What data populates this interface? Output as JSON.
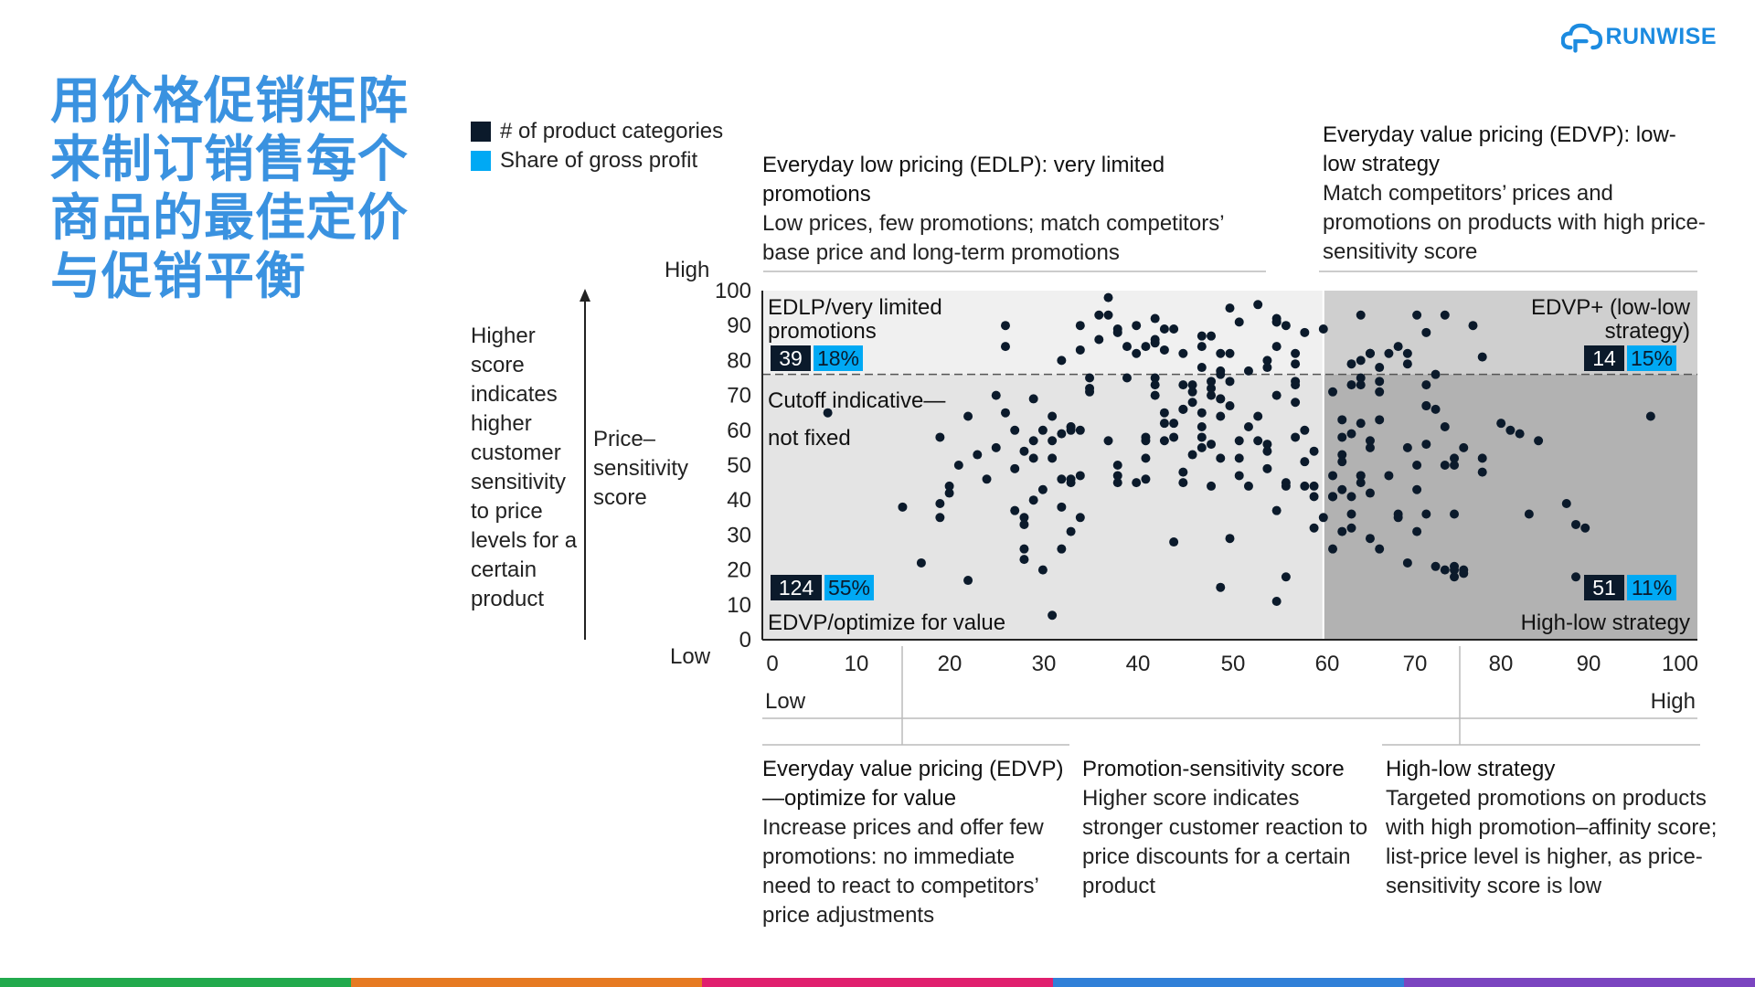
{
  "title": "用价格促销矩阵来制订销售每个商品的最佳定价与促销平衡",
  "logo": {
    "text": "RUNWISE"
  },
  "legend": [
    {
      "label": "# of product categories",
      "color": "#0b1a2b"
    },
    {
      "label": "Share of gross profit",
      "color": "#00a9f4"
    }
  ],
  "top_annotations": {
    "edlp_title": "Everyday low pricing (EDLP): very limited promotions",
    "edlp_body": "Low prices, few promotions; match competitors’ base price and long-term promotions",
    "edvp_title": "Everyday value pricing (EDVP): low-low strategy",
    "edvp_body": "Match competitors’ prices and promotions on products with high price-sensitivity score"
  },
  "y_axis": {
    "high": "High",
    "low": "Low",
    "label": "Price– sensitivity score",
    "description": "Higher score indicates higher customer sensitivity to price levels for a certain product"
  },
  "bottom_annotations": {
    "edvp_title": "Everyday value pricing (EDVP)—optimize for value",
    "edvp_body": "Increase prices and offer few promotions: no immediate need to react to competitors’ price adjustments",
    "promo_title": "Promotion-sensitivity score",
    "promo_body": "Higher score indicates stronger customer reaction to price discounts for a certain product",
    "highlow_title": "High-low strategy",
    "highlow_body": "Targeted promotions on products with high promotion–affinity score; list-price level is higher, as price-sensitivity score is low"
  },
  "chart_data": {
    "type": "scatter",
    "title": "",
    "xlabel": "Promotion-sensitivity score",
    "ylabel": "Price-sensitivity score",
    "xlim": [
      0,
      100
    ],
    "ylim": [
      0,
      100
    ],
    "x_ticks": [
      0,
      10,
      20,
      30,
      40,
      50,
      60,
      70,
      80,
      90,
      100
    ],
    "y_ticks": [
      100,
      90,
      80,
      70,
      60,
      50,
      40,
      30,
      20,
      10,
      0
    ],
    "x_low": "Low",
    "x_high": "High",
    "cutoff": {
      "y": 76,
      "label_line1": "Cutoff indicative—",
      "label_line2": "not fixed"
    },
    "x_split": 60,
    "quadrants": [
      {
        "name": "EDLP/very limited promotions",
        "line1": "EDLP/very limited",
        "line2": "promotions",
        "count": "39",
        "share": "18%",
        "fill": "#f0f0f0"
      },
      {
        "name": "EDVP+ (low-low strategy)",
        "line1": "EDVP+ (low-low",
        "line2": "strategy)",
        "count": "14",
        "share": "15%",
        "fill": "#cfcfcf"
      },
      {
        "name": "EDVP/optimize for value",
        "line1": "EDVP/optimize for value",
        "count": "124",
        "share": "55%",
        "fill": "#e4e4e4"
      },
      {
        "name": "High-low strategy",
        "line1": "High-low strategy",
        "count": "51",
        "share": "11%",
        "fill": "#b2b2b2"
      }
    ],
    "points": [
      [
        7,
        65
      ],
      [
        15,
        38
      ],
      [
        17,
        22
      ],
      [
        19,
        39
      ],
      [
        20,
        42
      ],
      [
        20,
        44
      ],
      [
        21,
        50
      ],
      [
        22,
        17
      ],
      [
        19,
        58
      ],
      [
        19,
        35
      ],
      [
        22,
        64
      ],
      [
        23,
        53
      ],
      [
        24,
        46
      ],
      [
        25,
        55
      ],
      [
        26,
        90
      ],
      [
        26,
        84
      ],
      [
        25,
        70
      ],
      [
        26,
        65
      ],
      [
        27,
        49
      ],
      [
        27,
        37
      ],
      [
        27,
        60
      ],
      [
        28,
        54
      ],
      [
        28,
        35
      ],
      [
        28,
        26
      ],
      [
        28,
        23
      ],
      [
        28,
        33
      ],
      [
        29,
        40
      ],
      [
        29,
        57
      ],
      [
        29,
        69
      ],
      [
        29,
        52
      ],
      [
        30,
        60
      ],
      [
        30,
        20
      ],
      [
        30,
        43
      ],
      [
        31,
        57
      ],
      [
        31,
        52
      ],
      [
        31,
        64
      ],
      [
        31,
        7
      ],
      [
        32,
        59
      ],
      [
        32,
        46
      ],
      [
        32,
        38
      ],
      [
        32,
        26
      ],
      [
        32,
        80
      ],
      [
        33,
        61
      ],
      [
        33,
        61
      ],
      [
        33,
        45
      ],
      [
        33,
        60
      ],
      [
        33,
        46
      ],
      [
        33,
        31
      ],
      [
        34,
        47
      ],
      [
        34,
        35
      ],
      [
        34,
        60
      ],
      [
        34,
        83
      ],
      [
        34,
        90
      ],
      [
        35,
        75
      ],
      [
        35,
        71
      ],
      [
        35,
        72
      ],
      [
        36,
        93
      ],
      [
        36,
        86
      ],
      [
        37,
        98
      ],
      [
        37,
        93
      ],
      [
        37,
        57
      ],
      [
        38,
        89
      ],
      [
        38,
        88
      ],
      [
        38,
        50
      ],
      [
        38,
        45
      ],
      [
        38,
        47
      ],
      [
        39,
        75
      ],
      [
        40,
        90
      ],
      [
        39,
        84
      ],
      [
        40,
        82
      ],
      [
        40,
        45
      ],
      [
        41,
        52
      ],
      [
        41,
        57
      ],
      [
        41,
        84
      ],
      [
        41,
        58
      ],
      [
        41,
        46
      ],
      [
        42,
        70
      ],
      [
        42,
        75
      ],
      [
        42,
        85
      ],
      [
        42,
        92
      ],
      [
        42,
        86
      ],
      [
        42,
        73
      ],
      [
        43,
        89
      ],
      [
        43,
        65
      ],
      [
        43,
        83
      ],
      [
        43,
        57
      ],
      [
        43,
        62
      ],
      [
        44,
        62
      ],
      [
        44,
        58
      ],
      [
        44,
        28
      ],
      [
        44,
        89
      ],
      [
        45,
        82
      ],
      [
        45,
        66
      ],
      [
        45,
        73
      ],
      [
        45,
        66
      ],
      [
        45,
        45
      ],
      [
        45,
        48
      ],
      [
        46,
        71
      ],
      [
        46,
        68
      ],
      [
        46,
        53
      ],
      [
        46,
        73
      ],
      [
        47,
        84
      ],
      [
        47,
        58
      ],
      [
        47,
        65
      ],
      [
        47,
        78
      ],
      [
        47,
        61
      ],
      [
        47,
        55
      ],
      [
        47,
        87
      ],
      [
        48,
        87
      ],
      [
        48,
        44
      ],
      [
        48,
        56
      ],
      [
        48,
        70
      ],
      [
        48,
        72
      ],
      [
        49,
        69
      ],
      [
        49,
        77
      ],
      [
        48,
        74
      ],
      [
        49,
        76
      ],
      [
        49,
        69
      ],
      [
        49,
        64
      ],
      [
        49,
        82
      ],
      [
        50,
        74
      ],
      [
        50,
        82
      ],
      [
        49,
        52
      ],
      [
        50,
        95
      ],
      [
        50,
        67
      ],
      [
        49,
        15
      ],
      [
        50,
        29
      ],
      [
        51,
        47
      ],
      [
        51,
        52
      ],
      [
        51,
        57
      ],
      [
        51,
        91
      ],
      [
        52,
        44
      ],
      [
        52,
        61
      ],
      [
        52,
        77
      ],
      [
        53,
        96
      ],
      [
        53,
        57
      ],
      [
        53,
        64
      ],
      [
        54,
        49
      ],
      [
        54,
        56
      ],
      [
        54,
        80
      ],
      [
        54,
        78
      ],
      [
        54,
        54
      ],
      [
        55,
        92
      ],
      [
        55,
        91
      ],
      [
        55,
        70
      ],
      [
        55,
        84
      ],
      [
        55,
        91
      ],
      [
        55,
        37
      ],
      [
        55,
        11
      ],
      [
        56,
        90
      ],
      [
        56,
        18
      ],
      [
        56,
        44
      ],
      [
        56,
        45
      ],
      [
        57,
        73
      ],
      [
        57,
        82
      ],
      [
        57,
        58
      ],
      [
        57,
        74
      ],
      [
        57,
        68
      ],
      [
        57,
        79
      ],
      [
        58,
        88
      ],
      [
        58,
        60
      ],
      [
        58,
        51
      ],
      [
        58,
        44
      ],
      [
        59,
        44
      ],
      [
        59,
        54
      ],
      [
        59,
        41
      ],
      [
        59,
        32
      ],
      [
        60,
        35
      ],
      [
        60,
        89
      ],
      [
        61,
        41
      ],
      [
        61,
        47
      ],
      [
        61,
        71
      ],
      [
        61,
        41
      ],
      [
        61,
        41
      ],
      [
        61,
        26
      ],
      [
        62,
        31
      ],
      [
        62,
        53
      ],
      [
        62,
        63
      ],
      [
        62,
        58
      ],
      [
        62,
        51
      ],
      [
        62,
        43
      ],
      [
        63,
        41
      ],
      [
        63,
        79
      ],
      [
        63,
        59
      ],
      [
        63,
        36
      ],
      [
        63,
        73
      ],
      [
        63,
        32
      ],
      [
        64,
        75
      ],
      [
        64,
        80
      ],
      [
        64,
        47
      ],
      [
        64,
        45
      ],
      [
        64,
        47
      ],
      [
        64,
        93
      ],
      [
        64,
        73
      ],
      [
        64,
        62
      ],
      [
        65,
        42
      ],
      [
        65,
        55
      ],
      [
        65,
        29
      ],
      [
        65,
        82
      ],
      [
        65,
        82
      ],
      [
        65,
        57
      ],
      [
        65,
        82
      ],
      [
        66,
        78
      ],
      [
        66,
        74
      ],
      [
        66,
        63
      ],
      [
        66,
        71
      ],
      [
        66,
        26
      ],
      [
        67,
        82
      ],
      [
        67,
        47
      ],
      [
        68,
        36
      ],
      [
        68,
        35
      ],
      [
        68,
        84
      ],
      [
        69,
        79
      ],
      [
        69,
        82
      ],
      [
        69,
        55
      ],
      [
        69,
        22
      ],
      [
        70,
        31
      ],
      [
        70,
        93
      ],
      [
        70,
        50
      ],
      [
        70,
        43
      ],
      [
        71,
        67
      ],
      [
        71,
        67
      ],
      [
        71,
        88
      ],
      [
        71,
        56
      ],
      [
        71,
        73
      ],
      [
        71,
        36
      ],
      [
        72,
        66
      ],
      [
        72,
        21
      ],
      [
        72,
        76
      ],
      [
        73,
        20
      ],
      [
        73,
        50
      ],
      [
        73,
        61
      ],
      [
        73,
        93
      ],
      [
        74,
        36
      ],
      [
        74,
        52
      ],
      [
        74,
        21
      ],
      [
        74,
        50
      ],
      [
        74,
        20
      ],
      [
        75,
        20
      ],
      [
        74,
        18
      ],
      [
        75,
        19
      ],
      [
        75,
        55
      ],
      [
        76,
        90
      ],
      [
        77,
        52
      ],
      [
        77,
        81
      ],
      [
        77,
        48
      ],
      [
        79,
        62
      ],
      [
        80,
        60
      ],
      [
        81,
        59
      ],
      [
        82,
        36
      ],
      [
        83,
        57
      ],
      [
        86,
        39
      ],
      [
        87,
        18
      ],
      [
        87,
        33
      ],
      [
        88,
        32
      ],
      [
        95,
        64
      ]
    ]
  },
  "stripe_colors": [
    "#22aa4d",
    "#e67a22",
    "#e01f6e",
    "#3080d8",
    "#7b45c0"
  ]
}
